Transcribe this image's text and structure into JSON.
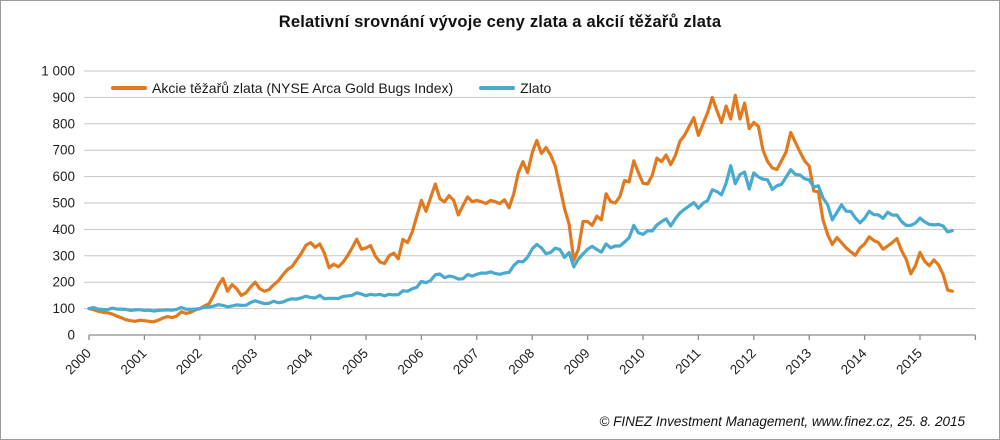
{
  "chart_data": {
    "type": "line",
    "title": "Relativní srovnání vývoje ceny zlata a akcií těžařů zlata",
    "xlabel": "",
    "ylabel": "",
    "grid": true,
    "legend_position": "top-left-inside",
    "y_axis": {
      "min": 0,
      "max": 1000,
      "step": 100,
      "tick_labels": [
        "0",
        "100",
        "200",
        "300",
        "400",
        "500",
        "600",
        "700",
        "800",
        "900",
        "1 000"
      ]
    },
    "x_axis": {
      "tick_labels": [
        "2000",
        "2001",
        "2002",
        "2003",
        "2004",
        "2005",
        "2006",
        "2007",
        "2008",
        "2009",
        "2010",
        "2011",
        "2012",
        "2013",
        "2014",
        "2015"
      ],
      "start": 2000.0,
      "end": 2015.583,
      "points_per_year": 12
    },
    "colors": {
      "miners_line": "#E1791F",
      "gold_line": "#47AACE",
      "gridline": "#C6C6C6",
      "axis": "#8C8C8C",
      "tick_text": "#1f1f1f"
    },
    "series": [
      {
        "name": "Akcie těžařů zlata (NYSE Arca Gold Bugs Index)",
        "color": "#E1791F",
        "x_start": 2000.0,
        "x_step_months": 1,
        "values": [
          100,
          96,
          90,
          86,
          84,
          80,
          72,
          65,
          58,
          54,
          52,
          56,
          54,
          52,
          50,
          56,
          64,
          70,
          66,
          72,
          88,
          82,
          86,
          95,
          100,
          110,
          118,
          150,
          188,
          214,
          166,
          191,
          175,
          150,
          160,
          182,
          200,
          175,
          166,
          172,
          190,
          205,
          228,
          248,
          260,
          285,
          310,
          340,
          350,
          332,
          345,
          310,
          255,
          268,
          258,
          275,
          300,
          330,
          363,
          325,
          330,
          339,
          300,
          277,
          271,
          300,
          310,
          289,
          362,
          350,
          390,
          450,
          510,
          468,
          520,
          572,
          516,
          504,
          528,
          510,
          455,
          490,
          523,
          505,
          510,
          505,
          498,
          510,
          505,
          498,
          512,
          482,
          534,
          615,
          657,
          615,
          690,
          737,
          688,
          710,
          682,
          639,
          560,
          479,
          420,
          283,
          325,
          430,
          430,
          415,
          450,
          436,
          535,
          505,
          500,
          525,
          585,
          580,
          660,
          615,
          575,
          572,
          604,
          670,
          657,
          682,
          645,
          679,
          734,
          756,
          790,
          823,
          756,
          800,
          842,
          900,
          850,
          805,
          867,
          818,
          908,
          818,
          878,
          782,
          805,
          790,
          700,
          657,
          633,
          627,
          660,
          693,
          767,
          730,
          693,
          660,
          640,
          546,
          542,
          436,
          380,
          343,
          369,
          350,
          330,
          315,
          302,
          330,
          345,
          372,
          358,
          350,
          325,
          337,
          350,
          365,
          320,
          288,
          232,
          262,
          313,
          280,
          262,
          284,
          266,
          230,
          170,
          166
        ]
      },
      {
        "name": "Zlato",
        "color": "#47AACE",
        "x_start": 2000.0,
        "x_step_months": 1,
        "values": [
          100,
          104,
          98,
          97,
          96,
          102,
          98,
          98,
          97,
          93,
          95,
          96,
          93,
          94,
          91,
          93,
          94,
          95,
          94,
          97,
          104,
          98,
          97,
          98,
          100,
          105,
          106,
          109,
          115,
          112,
          107,
          110,
          114,
          112,
          113,
          123,
          130,
          124,
          119,
          120,
          128,
          122,
          125,
          133,
          137,
          136,
          141,
          147,
          142,
          140,
          150,
          137,
          139,
          139,
          138,
          146,
          148,
          150,
          160,
          155,
          149,
          154,
          151,
          154,
          148,
          154,
          152,
          153,
          167,
          166,
          175,
          181,
          203,
          198,
          206,
          228,
          231,
          217,
          223,
          220,
          212,
          213,
          229,
          223,
          230,
          235,
          234,
          239,
          233,
          230,
          235,
          237,
          263,
          279,
          277,
          295,
          326,
          343,
          330,
          308,
          313,
          329,
          324,
          294,
          312,
          258,
          288,
          307,
          325,
          336,
          324,
          314,
          345,
          330,
          337,
          337,
          352,
          368,
          415,
          387,
          381,
          395,
          394,
          417,
          429,
          440,
          413,
          440,
          462,
          476,
          489,
          502,
          480,
          499,
          509,
          550,
          543,
          531,
          575,
          641,
          573,
          608,
          617,
          553,
          614,
          599,
          590,
          588,
          551,
          565,
          571,
          598,
          626,
          608,
          606,
          592,
          587,
          561,
          565,
          519,
          493,
          436,
          464,
          493,
          469,
          468,
          443,
          425,
          442,
          469,
          456,
          455,
          442,
          465,
          454,
          454,
          430,
          415,
          415,
          424,
          443,
          429,
          419,
          417,
          419,
          413,
          390,
          395
        ]
      }
    ]
  },
  "footer": {
    "credit": "© FINEZ Investment Management, www.finez.cz, 25. 8. 2015"
  }
}
